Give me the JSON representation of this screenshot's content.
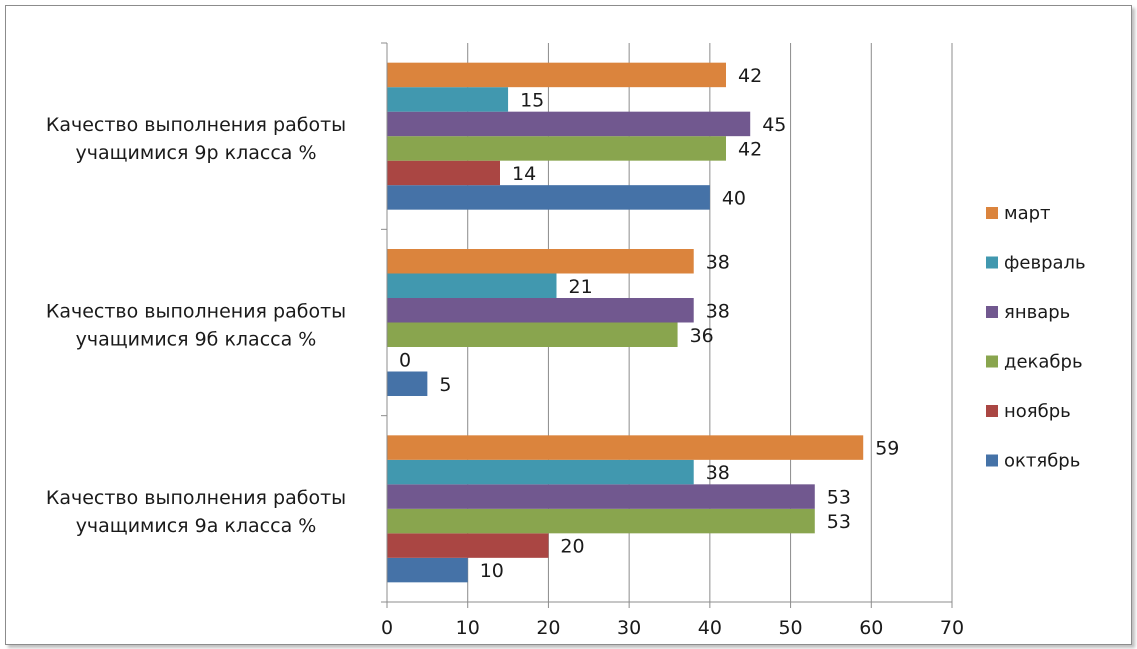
{
  "chart_data": {
    "type": "bar",
    "orientation": "horizontal",
    "categories": [
      "Качество выполнения работы учащимися 9р класса %",
      "Качество выполнения работы учащимися 9б класса %",
      "Качество выполнения работы учащимися 9а класса %"
    ],
    "category_lines": [
      [
        "Качество выполнения работы",
        "учащимися 9р класса %"
      ],
      [
        "Качество выполнения работы",
        "учащимися 9б класса %"
      ],
      [
        "Качество выполнения работы",
        "учащимися 9а класса %"
      ]
    ],
    "series": [
      {
        "name": "октябрь",
        "color": "#4572a7",
        "values": [
          40,
          5,
          10
        ]
      },
      {
        "name": "ноябрь",
        "color": "#aa4643",
        "values": [
          14,
          0,
          20
        ]
      },
      {
        "name": "декабрь",
        "color": "#89a54e",
        "values": [
          42,
          36,
          53
        ]
      },
      {
        "name": "январь",
        "color": "#71588f",
        "values": [
          45,
          38,
          53
        ]
      },
      {
        "name": "февраль",
        "color": "#4198af",
        "values": [
          15,
          21,
          38
        ]
      },
      {
        "name": "март",
        "color": "#db843d",
        "values": [
          42,
          38,
          59
        ]
      }
    ],
    "xlim": [
      0,
      70
    ],
    "x_ticks": [
      0,
      10,
      20,
      30,
      40,
      50,
      60,
      70
    ],
    "grid": "vertical",
    "legend": "right",
    "title": "",
    "xlabel": "",
    "ylabel": ""
  }
}
